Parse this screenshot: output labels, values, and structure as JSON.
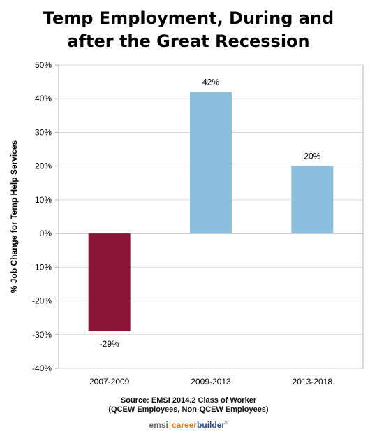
{
  "chart_data": {
    "type": "bar",
    "title_lines": [
      "Temp Employment, During and",
      "after the Great Recession"
    ],
    "ylabel": "% Job Change for Temp Help Services",
    "xlabel": "",
    "categories": [
      "2007-2009",
      "2009-2013",
      "2013-2018"
    ],
    "values": [
      -29,
      42,
      20
    ],
    "data_labels": [
      "-29%",
      "42%",
      "20%"
    ],
    "bar_colors": [
      "#8B1535",
      "#8CBEDD",
      "#8CBEDD"
    ],
    "ylim": [
      -40,
      50
    ],
    "yticks": [
      50,
      40,
      30,
      20,
      10,
      0,
      -10,
      -20,
      -30,
      -40
    ],
    "ytick_labels": [
      "50%",
      "40%",
      "30%",
      "20%",
      "10%",
      "0%",
      "-10%",
      "-20%",
      "-30%",
      "-40%"
    ],
    "grid": true,
    "legend": "none"
  },
  "source": {
    "line1": "Source: EMSI 2014.2 Class of Worker",
    "line2": "(QCEW Employees, Non-QCEW Employees)"
  },
  "logo": {
    "emsi": "emsi",
    "separator": "|",
    "career": "career",
    "builder": "builder",
    "mark": "®"
  },
  "colors": {
    "negative_bar": "#8B1535",
    "positive_bar": "#8CBEDD",
    "gridline": "#d9d9d9",
    "axis": "#b0b0b0"
  }
}
